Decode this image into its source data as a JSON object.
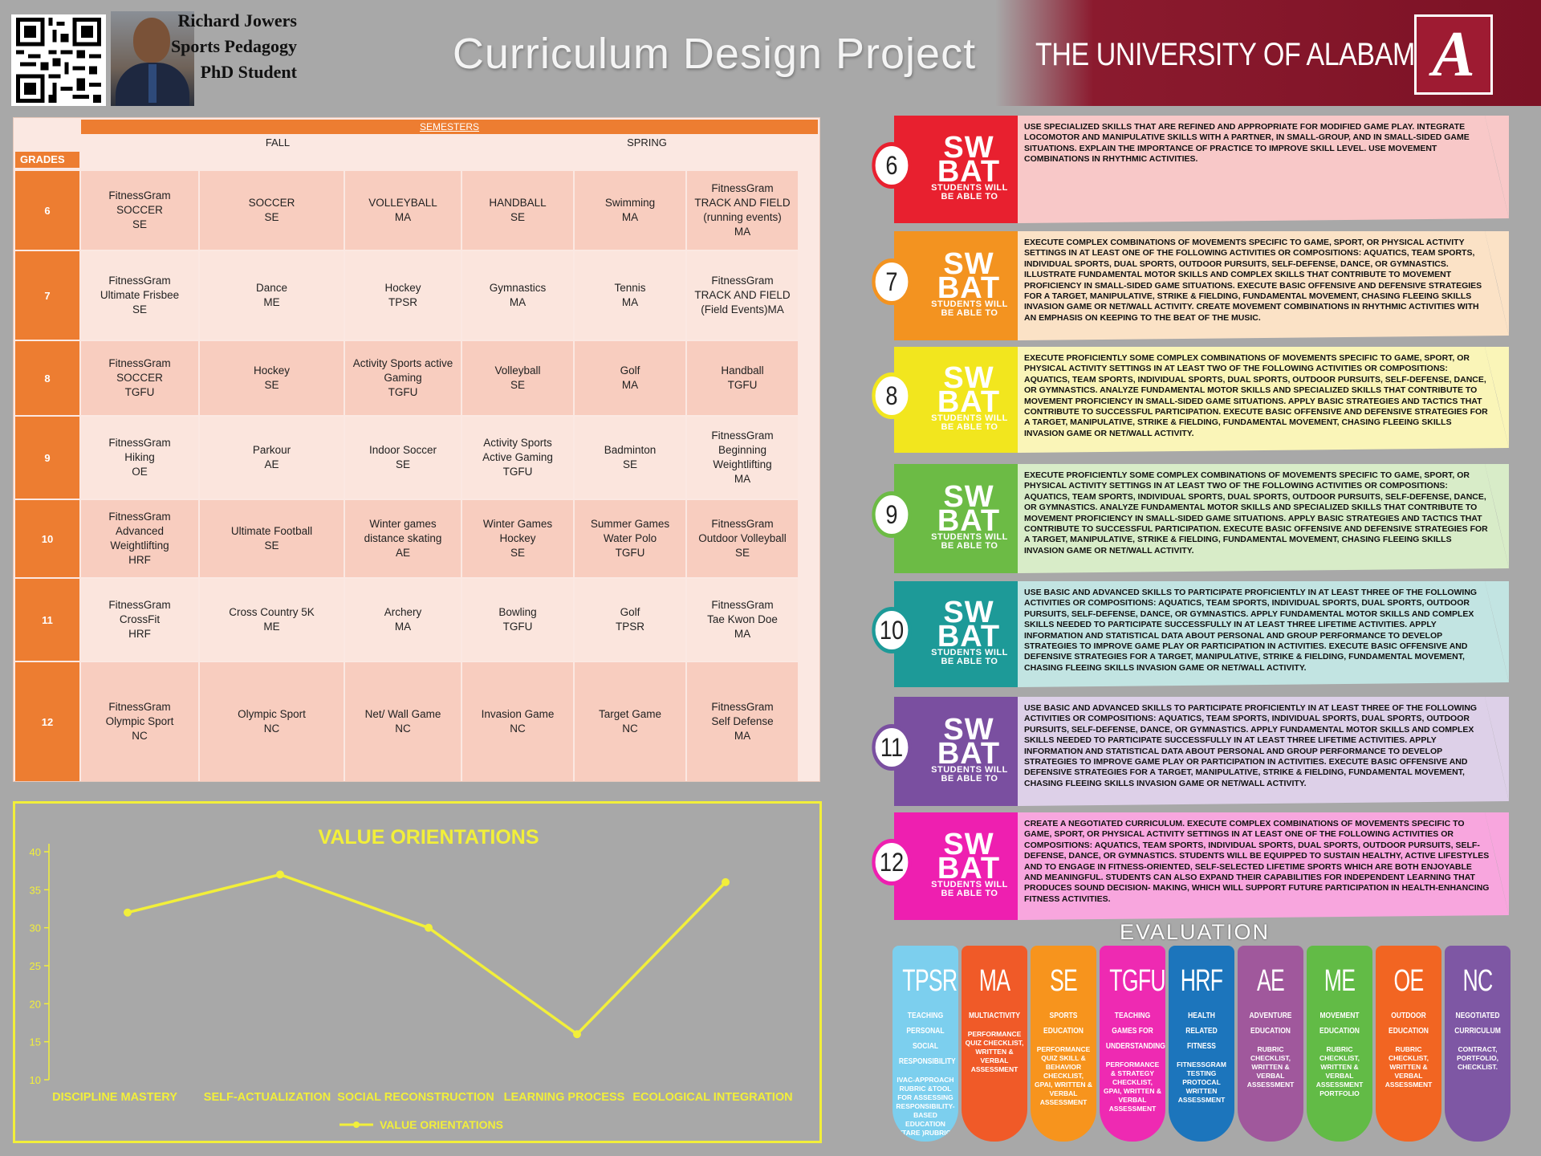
{
  "header": {
    "author_name": "Richard Jowers",
    "author_field": "Sports Pedagogy",
    "author_role": "PhD Student",
    "title": "Curriculum Design Project",
    "university": "THE UNIVERSITY OF ALABAMA",
    "logo_letter": "A"
  },
  "table": {
    "semesters_label": "SEMESTERS",
    "fall_label": "FALL",
    "spring_label": "SPRING",
    "grades_label": "GRADES",
    "rows": [
      {
        "grade": "6",
        "cells": [
          "FitnessGram\nSOCCER\nSE",
          "SOCCER\nSE",
          "VOLLEYBALL\nMA",
          "HANDBALL\nSE",
          "Swimming\nMA",
          "FitnessGram\nTRACK AND FIELD\n(running events)\nMA"
        ]
      },
      {
        "grade": "7",
        "cells": [
          "FitnessGram\nUltimate Frisbee\nSE",
          "Dance\nME",
          "Hockey\nTPSR",
          "Gymnastics\nMA",
          "Tennis\nMA",
          "FitnessGram\nTRACK AND FIELD\n(Field Events)MA"
        ]
      },
      {
        "grade": "8",
        "cells": [
          "FitnessGram\nSOCCER\nTGFU",
          "Hockey\nSE",
          "Activity Sports active\nGaming\nTGFU",
          "Volleyball\nSE",
          "Golf\nMA",
          "Handball\nTGFU"
        ]
      },
      {
        "grade": "9",
        "cells": [
          "FitnessGram\nHiking\nOE",
          "Parkour\nAE",
          "Indoor Soccer\nSE",
          "Activity Sports\nActive Gaming\nTGFU",
          "Badminton\nSE",
          "FitnessGram\nBeginning\nWeightlifting\nMA"
        ]
      },
      {
        "grade": "10",
        "cells": [
          "FitnessGram\nAdvanced\nWeightlifting\nHRF",
          "Ultimate Football\nSE",
          "Winter games\ndistance skating\nAE",
          "Winter Games\nHockey\nSE",
          "Summer Games\nWater Polo\nTGFU",
          "FitnessGram\nOutdoor Volleyball\nSE"
        ]
      },
      {
        "grade": "11",
        "cells": [
          "FitnessGram\nCrossFit\nHRF",
          "Cross Country 5K\nME",
          "Archery\nMA",
          "Bowling\nTGFU",
          "Golf\nTPSR",
          "FitnessGram\nTae Kwon Doe\nMA"
        ]
      },
      {
        "grade": "12",
        "cells": [
          "FitnessGram\nOlympic Sport\nNC",
          "Olympic Sport\nNC",
          "Net/ Wall Game\nNC",
          "Invasion Game\nNC",
          "Target Game\nNC",
          "FitnessGram\nSelf Defense\nMA"
        ]
      }
    ]
  },
  "chart_data": {
    "type": "line",
    "title": "VALUE ORIENTATIONS",
    "categories": [
      "DISCIPLINE MASTERY",
      "SELF-ACTUALIZATION",
      "SOCIAL RECONSTRUCTION",
      "LEARNING PROCESS",
      "ECOLOGICAL INTEGRATION"
    ],
    "series": [
      {
        "name": "VALUE ORIENTATIONS",
        "values": [
          32,
          37,
          30,
          16,
          36
        ]
      }
    ],
    "ylim": [
      10,
      40
    ],
    "yticks": [
      10,
      15,
      20,
      25,
      30,
      35,
      40
    ],
    "legend": "bottom",
    "color": "#f2ef3a"
  },
  "swbat": {
    "sw": "SW",
    "bat": "BAT",
    "able_line1": "STUDENTS WILL",
    "able_line2": "BE ABLE TO",
    "items": [
      {
        "grade": "6",
        "color": "#e8202f",
        "light": "#f8c8c8",
        "text": "Use specialized skills that are refined and appropriate for modified game play. Integrate locomotor and manipulative skills with a partner, in small-group, and in small-sided game situations. Explain the importance of practice to improve skill level. Use movement combinations in rhythmic activities."
      },
      {
        "grade": "7",
        "color": "#f39320",
        "light": "#fbe2c6",
        "text": "Execute complex combinations of movements specific to game, sport, or physical activity settings in at least one of the following activities or compositions: aquatics, team sports, individual sports, dual sports, outdoor pursuits, self-defense, dance, or gymnastics. Illustrate fundamental motor skills and complex skills that contribute to movement proficiency in small-sided game situations. Execute basic offensive and defensive strategies for a target, manipulative, strike & fielding, fundamental movement, chasing fleeing skills invasion game or net/wall activity. Create movement combinations in rhythmic activities with an emphasis on keeping to the beat of the music."
      },
      {
        "grade": "8",
        "color": "#f2e61e",
        "light": "#faf5b8",
        "text": "Execute proficiently some complex combinations of movements specific to game, sport, or physical activity settings in at least two of the following activities or compositions: aquatics, team sports, individual sports, dual sports, outdoor pursuits, self-defense, dance, or gymnastics. Analyze fundamental motor skills and specialized skills that contribute to movement proficiency in small-sided game situations. Apply basic strategies and tactics that contribute to successful participation. Execute basic offensive and defensive strategies for a target, manipulative, strike & fielding, fundamental movement, chasing fleeing skills invasion game or net/wall activity."
      },
      {
        "grade": "9",
        "color": "#6cbb45",
        "light": "#d8ecc8",
        "text": "Execute proficiently some complex combinations of movements specific to game, sport, or physical activity settings in at least two of the following activities or compositions: aquatics, team sports, individual sports, dual sports, outdoor pursuits, self-defense, dance, or gymnastics. Analyze fundamental motor skills and specialized skills that contribute to movement proficiency in small-sided game situations. Apply basic strategies and tactics that contribute to successful participation. Execute basic offensive and defensive strategies for a target, manipulative, strike & fielding, fundamental movement, chasing fleeing skills invasion game or net/wall activity."
      },
      {
        "grade": "10",
        "color": "#1d9a98",
        "light": "#c2e4e2",
        "text": "Use basic and advanced skills to participate proficiently in at least three of the following activities or compositions: aquatics, team sports, individual sports, dual sports, outdoor pursuits, self-defense, dance, or gymnastics. Apply fundamental motor skills and complex skills needed to participate successfully in at least three lifetime activities. Apply information and statistical data about personal and group performance to develop strategies to improve game play or participation in activities. Execute basic offensive and defensive strategies for a target, manipulative, strike & fielding, fundamental movement, chasing fleeing skills invasion game or net/wall activity."
      },
      {
        "grade": "11",
        "color": "#7a4fa0",
        "light": "#ddd0e8",
        "text": "Use basic and advanced skills to participate proficiently in at least three of the following activities or compositions: aquatics, team sports, individual sports, dual sports, outdoor pursuits, self-defense, dance, or gymnastics. Apply fundamental motor skills and complex skills needed to participate successfully in at least three lifetime activities. Apply information and statistical data about personal and group performance to develop strategies to improve game play or participation in activities. Execute basic offensive and defensive strategies for a target, manipulative, strike & fielding, fundamental movement, chasing fleeing skills invasion game or net/wall activity."
      },
      {
        "grade": "12",
        "color": "#ee1fb0",
        "light": "#f8a6de",
        "text": "Create a negotiated curriculum. Execute complex combinations of movements specific to game, sport, or physical activity settings in at least one of the following activities or compositions: aquatics, team sports, individual sports, dual sports, outdoor pursuits, self-defense, dance, or gymnastics. Students will be equipped to sustain healthy, active lifestyles and to engage in fitness-oriented, self-selected lifetime sports which are both enjoyable and meaningful. Students can also expand their capabilities for independent learning that produces sound decision- making, which will support future participation in health-enhancing fitness activities."
      }
    ]
  },
  "evaluation": {
    "title": "EVALUATION",
    "items": [
      {
        "abbr": "TPSR",
        "name": "TEACHING PERSONAL SOCIAL RESPONSIBILITY",
        "desc": "IVAC-APPROACH RUBRIC &TOOL FOR ASSESSING RESPONSIBILITY-BASED EDUCATION (TARE )RUBRIC",
        "color": "#7ccfee"
      },
      {
        "abbr": "MA",
        "name": "MULTIACTIVITY",
        "desc": "PERFORMANCE QUIZ CHECKLIST, WRITTEN & VERBAL ASSESSMENT",
        "color": "#f05a28"
      },
      {
        "abbr": "SE",
        "name": "SPORTS EDUCATION",
        "desc": "PERFORMANCE QUIZ SKILL & BEHAVIOR CHECKLIST, GPAI, WRITTEN & VERBAL ASSESSMENT",
        "color": "#f7941d"
      },
      {
        "abbr": "TGFU",
        "name": "TEACHING GAMES FOR UNDERSTANDING",
        "desc": "PERFORMANCE & STRATEGY CHECKLIST, GPAI, WRITTEN & VERBAL ASSESSMENT",
        "color": "#ee2ab2"
      },
      {
        "abbr": "HRF",
        "name": "HEALTH RELATED FITNESS",
        "desc": "FITNESSGRAM TESTING PROTOCAL WRITTEN ASSESSMENT",
        "color": "#1c75bc"
      },
      {
        "abbr": "AE",
        "name": "ADVENTURE EDUCATION",
        "desc": "RUBRIC CHECKLIST, WRITTEN & VERBAL ASSESSMENT",
        "color": "#a0589c"
      },
      {
        "abbr": "ME",
        "name": "MOVEMENT EDUCATION",
        "desc": "RUBRIC CHECKLIST, WRITTEN & VERBAL ASSESSMENT PORTFOLIO",
        "color": "#62bb46"
      },
      {
        "abbr": "OE",
        "name": "OUTDOOR EDUCATION",
        "desc": "RUBRIC CHECKLIST, WRITTEN & VERBAL ASSESSMENT",
        "color": "#f26522"
      },
      {
        "abbr": "NC",
        "name": "NEGOTIATED CURRICULUM",
        "desc": "CONTRACT, PORTFOLIO, CHECKLIST.",
        "color": "#7e57a4"
      }
    ]
  }
}
